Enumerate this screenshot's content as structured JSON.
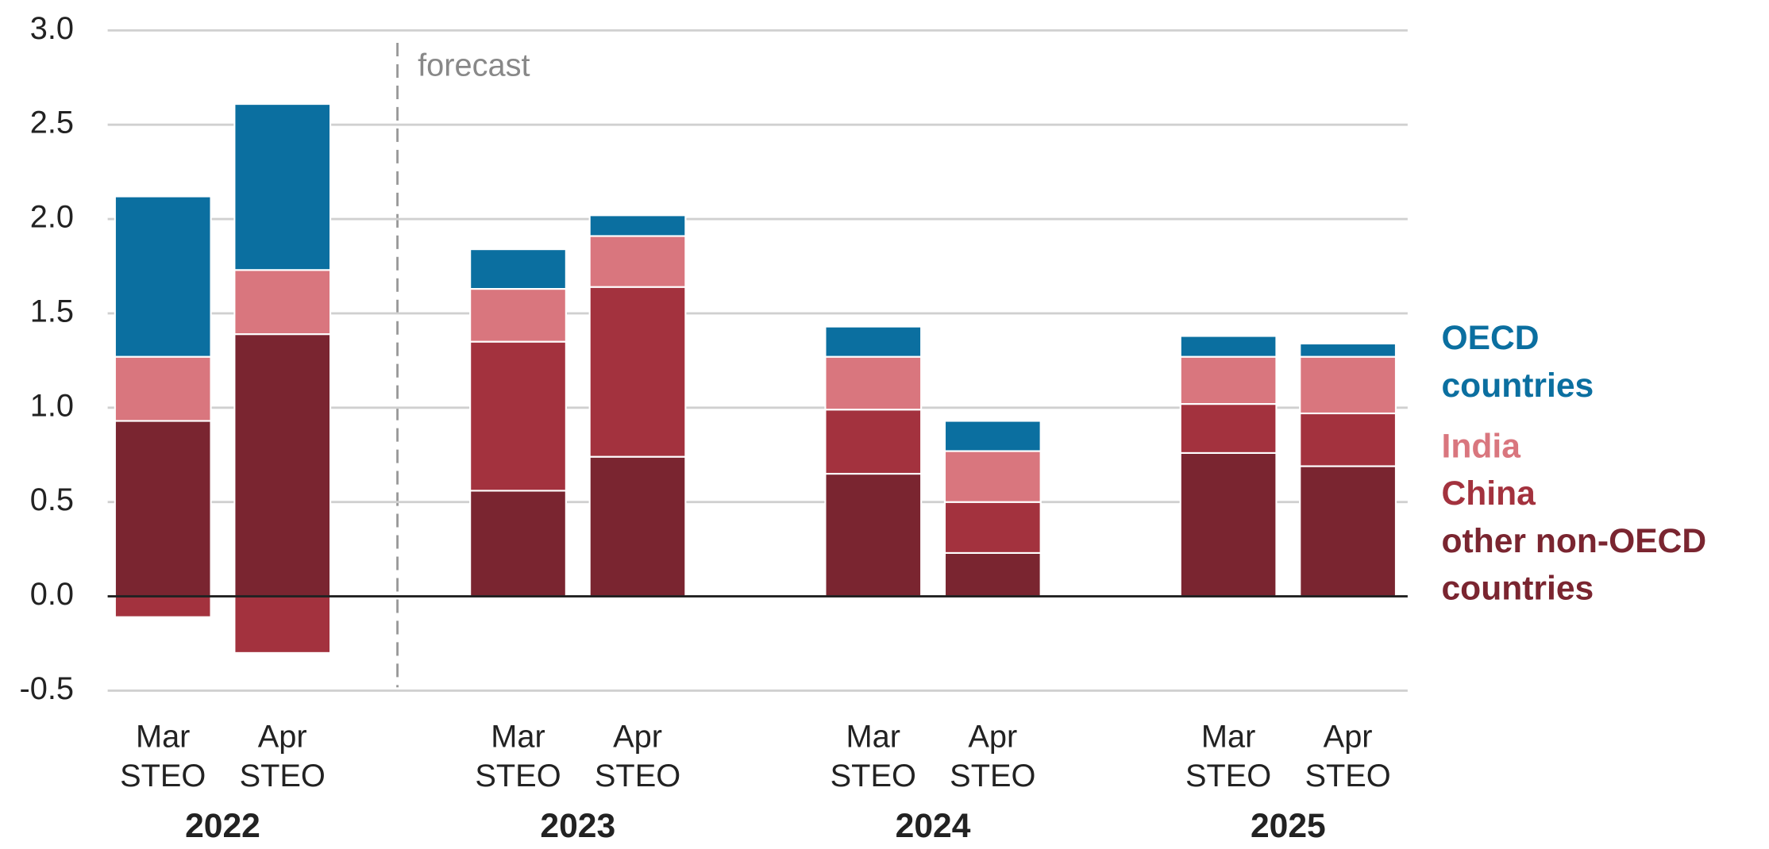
{
  "chart_data": {
    "type": "bar",
    "stacked": true,
    "categories": [
      "Mar STEO",
      "Apr STEO",
      "Mar STEO",
      "Apr STEO",
      "Mar STEO",
      "Apr STEO",
      "Mar STEO",
      "Apr STEO"
    ],
    "group_labels": [
      "2022",
      "2023",
      "2024",
      "2025"
    ],
    "annotation": "forecast",
    "series": [
      {
        "name": "other non-OECD countries",
        "color": "#7a2530",
        "values": [
          0.93,
          1.39,
          0.56,
          0.74,
          0.65,
          0.23,
          0.76,
          0.69
        ]
      },
      {
        "name": "China",
        "color": "#a3323e",
        "values": [
          -0.11,
          -0.3,
          0.79,
          0.9,
          0.34,
          0.27,
          0.26,
          0.28
        ]
      },
      {
        "name": "India",
        "color": "#d9767e",
        "values": [
          0.34,
          0.34,
          0.28,
          0.27,
          0.28,
          0.27,
          0.25,
          0.3
        ]
      },
      {
        "name": "OECD countries",
        "color": "#0b6fa0",
        "values": [
          0.85,
          0.88,
          0.21,
          0.11,
          0.16,
          0.16,
          0.11,
          0.07
        ]
      }
    ],
    "ylim": [
      -0.5,
      3.0
    ],
    "yticks": [
      {
        "value": 3,
        "label": "3.0"
      },
      2.5,
      {
        "value": 2,
        "label": "2.0"
      },
      1.5,
      {
        "value": 1,
        "label": "1.0"
      },
      0.5,
      {
        "value": 0,
        "label": "0.0"
      },
      -0.5
    ],
    "grid": true
  }
}
